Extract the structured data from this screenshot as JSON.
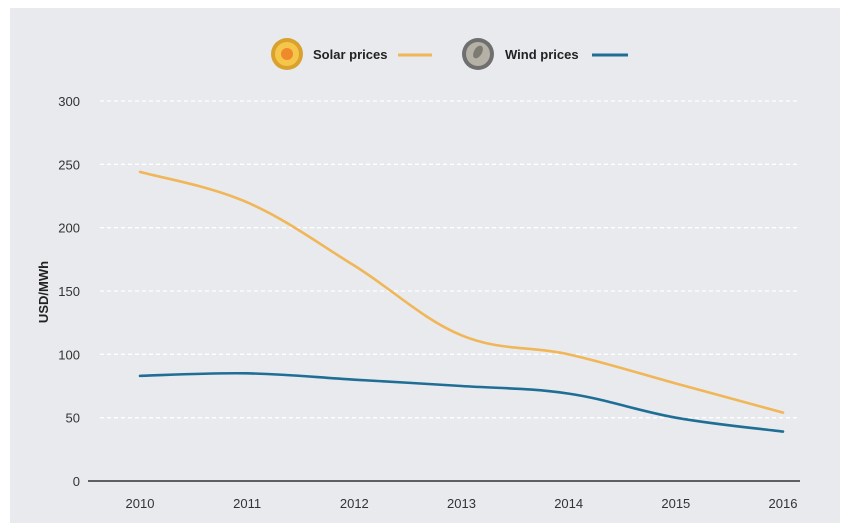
{
  "chart_data": {
    "type": "line",
    "x": [
      "2010",
      "2011",
      "2012",
      "2013",
      "2014",
      "2015",
      "2016"
    ],
    "ylabel": "USD/MWh",
    "ylim": [
      0,
      300
    ],
    "yticks": [
      0,
      50,
      100,
      150,
      200,
      250,
      300
    ],
    "grid": true,
    "legend_position": "top-center",
    "series": [
      {
        "name": "Solar prices",
        "color": "#f0b657",
        "icon": "sun-coin-icon",
        "values": [
          244,
          220,
          170,
          115,
          100,
          77,
          54
        ]
      },
      {
        "name": "Wind prices",
        "color": "#1f6e95",
        "icon": "wind-coin-icon",
        "values": [
          83,
          85,
          80,
          75,
          69,
          50,
          39
        ]
      }
    ]
  }
}
